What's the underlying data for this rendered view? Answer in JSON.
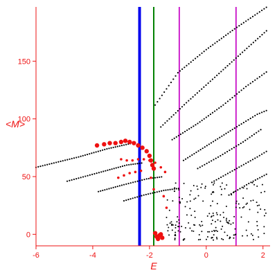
{
  "chart_data": {
    "type": "scatter",
    "title": "",
    "xlabel": "E",
    "ylabel": "<M>",
    "xlim": [
      -6,
      2.25
    ],
    "ylim": [
      -10,
      197
    ],
    "xticks": [
      -6,
      -4,
      -2,
      0,
      2
    ],
    "yticks": [
      0,
      50,
      100,
      150
    ],
    "grid": false,
    "axis_color": "#ee1111",
    "vertical_lines": [
      {
        "x": -2.35,
        "color": "#0000ee",
        "width": 4
      },
      {
        "x": -1.85,
        "color": "#008000",
        "width": 2
      },
      {
        "x": -0.95,
        "color": "#cc22cc",
        "width": 2
      },
      {
        "x": 1.05,
        "color": "#cc22cc",
        "width": 2
      }
    ],
    "series": [
      {
        "color": "#000000",
        "type": "dotted-curves",
        "values": [
          {
            "x": [
              -6.0,
              -4.5,
              -3.5,
              -2.6
            ],
            "y": [
              58,
              67,
              74,
              79
            ]
          },
          {
            "x": [
              -4.9,
              -3.7,
              -2.8,
              -2.2
            ],
            "y": [
              46,
              54,
              60,
              62
            ]
          },
          {
            "x": [
              -3.8,
              -2.9,
              -2.1,
              -1.5
            ],
            "y": [
              37,
              43,
              48,
              50
            ]
          },
          {
            "x": [
              -2.9,
              -2.2,
              -1.5,
              -0.9
            ],
            "y": [
              29,
              34,
              38,
              40
            ]
          },
          {
            "x": [
              -1.8,
              -1.0,
              0.0,
              1.0,
              2.2
            ],
            "y": [
              112,
              140,
              160,
              178,
              198
            ]
          },
          {
            "x": [
              -1.6,
              -0.7,
              0.3,
              1.2,
              2.2
            ],
            "y": [
              93,
              114,
              136,
              156,
              178
            ]
          },
          {
            "x": [
              -1.2,
              -0.3,
              0.6,
              1.4,
              2.2
            ],
            "y": [
              82,
              96,
              112,
              128,
              142
            ]
          },
          {
            "x": [
              -0.8,
              0.1,
              1.0,
              1.8,
              2.2
            ],
            "y": [
              64,
              78,
              92,
              104,
              108
            ]
          },
          {
            "x": [
              -0.3,
              0.5,
              1.3,
              2.0
            ],
            "y": [
              57,
              68,
              80,
              92
            ]
          },
          {
            "x": [
              0.2,
              1.0,
              1.8,
              2.2
            ],
            "y": [
              45,
              56,
              67,
              73
            ]
          },
          {
            "x": [
              0.8,
              1.5,
              2.2
            ],
            "y": [
              34,
              44,
              53
            ]
          }
        ]
      },
      {
        "color": "#ee1111",
        "type": "points",
        "values": [
          {
            "x": -3.85,
            "y": 77
          },
          {
            "x": -3.6,
            "y": 78
          },
          {
            "x": -3.4,
            "y": 79
          },
          {
            "x": -3.2,
            "y": 79
          },
          {
            "x": -3.0,
            "y": 80
          },
          {
            "x": -2.85,
            "y": 81
          },
          {
            "x": -2.7,
            "y": 80
          },
          {
            "x": -2.55,
            "y": 79
          },
          {
            "x": -2.4,
            "y": 77
          },
          {
            "x": -2.25,
            "y": 75
          },
          {
            "x": -2.1,
            "y": 72
          },
          {
            "x": -2.0,
            "y": 68
          },
          {
            "x": -1.95,
            "y": 64
          },
          {
            "x": -1.9,
            "y": 60
          },
          {
            "x": -1.85,
            "y": 57
          },
          {
            "x": -3.0,
            "y": 65
          },
          {
            "x": -2.8,
            "y": 64
          },
          {
            "x": -2.6,
            "y": 64
          },
          {
            "x": -2.4,
            "y": 65
          },
          {
            "x": -2.2,
            "y": 65
          },
          {
            "x": -2.0,
            "y": 64
          },
          {
            "x": -1.8,
            "y": 62
          },
          {
            "x": -1.6,
            "y": 58
          },
          {
            "x": -1.45,
            "y": 54
          },
          {
            "x": -3.1,
            "y": 49
          },
          {
            "x": -2.9,
            "y": 51
          },
          {
            "x": -2.7,
            "y": 53
          },
          {
            "x": -2.5,
            "y": 54
          },
          {
            "x": -2.3,
            "y": 55
          },
          {
            "x": -1.95,
            "y": 49
          },
          {
            "x": -1.85,
            "y": 39
          },
          {
            "x": -1.5,
            "y": 33
          },
          {
            "x": -1.4,
            "y": 23
          },
          {
            "x": -1.8,
            "y": 1
          },
          {
            "x": -1.75,
            "y": -2
          },
          {
            "x": -1.65,
            "y": -1
          },
          {
            "x": -1.7,
            "y": -4
          },
          {
            "x": -1.6,
            "y": 0
          },
          {
            "x": -1.55,
            "y": -3
          }
        ]
      }
    ],
    "scatter_cluster": {
      "color": "#000000",
      "xlim": [
        -1.4,
        2.2
      ],
      "ylim": [
        -5,
        45
      ]
    }
  }
}
